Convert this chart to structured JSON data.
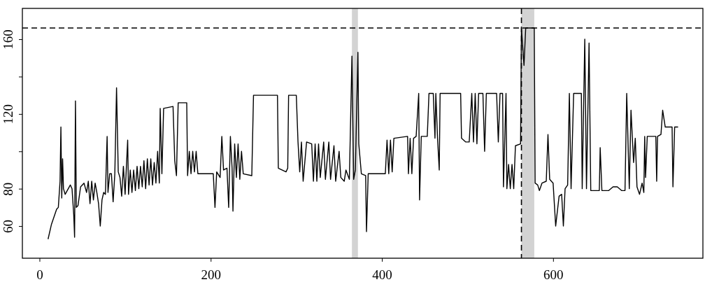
{
  "chart_data": {
    "type": "line",
    "xlim": [
      -20,
      775
    ],
    "ylim": [
      42.8,
      176.5
    ],
    "xticks": [
      0,
      200,
      400,
      600
    ],
    "yticks": [
      60,
      80,
      {
        "value": 100,
        "label": null
      },
      120,
      {
        "value": 140,
        "label": null
      },
      160
    ],
    "grid": false,
    "marker": "none",
    "line_style": "solid",
    "ref_lines": [
      {
        "axis": "y",
        "value": 166,
        "line_style": "dashed",
        "color": "#000000"
      },
      {
        "axis": "x",
        "value": 563,
        "line_style": "dashed",
        "color": "#000000"
      }
    ],
    "bands": [
      {
        "axis": "x",
        "from": 365,
        "to": 372,
        "color": "#d3d3d3"
      },
      {
        "axis": "x",
        "from": 563,
        "to": 578,
        "color": "#d3d3d3"
      }
    ],
    "series": [
      {
        "color": "#000000",
        "x": [
          10,
          14,
          17,
          20,
          22,
          24,
          25,
          26,
          27,
          28,
          30,
          36,
          38,
          40,
          41,
          42,
          43,
          45,
          48,
          52,
          55,
          57,
          59,
          61,
          63,
          65,
          67,
          69,
          71,
          73,
          75,
          77,
          79,
          80,
          82,
          84,
          86,
          88,
          90,
          92,
          94,
          96,
          98,
          100,
          103,
          104,
          106,
          108,
          110,
          112,
          114,
          116,
          118,
          120,
          122,
          124,
          126,
          128,
          130,
          132,
          134,
          136,
          138,
          140,
          141,
          143,
          145,
          156,
          158,
          160,
          162,
          172,
          173,
          175,
          177,
          179,
          181,
          183,
          185,
          203,
          205,
          207,
          211,
          213,
          215,
          219,
          221,
          223,
          225,
          226,
          228,
          230,
          232,
          234,
          236,
          238,
          248,
          250,
          278,
          279,
          288,
          290,
          291,
          300,
          302,
          304,
          306,
          308,
          312,
          318,
          320,
          322,
          324,
          326,
          328,
          332,
          334,
          338,
          340,
          344,
          346,
          350,
          352,
          356,
          358,
          362,
          365,
          367,
          369,
          372,
          373,
          376,
          381,
          382,
          384,
          404,
          406,
          408,
          410,
          412,
          414,
          430,
          431,
          433,
          435,
          437,
          440,
          443,
          444,
          446,
          453,
          455,
          460,
          462,
          463,
          465,
          467,
          468,
          479,
          492,
          493,
          498,
          502,
          505,
          507,
          509,
          511,
          513,
          518,
          520,
          522,
          534,
          536,
          538,
          541,
          542,
          545,
          546,
          548,
          550,
          552,
          554,
          556,
          562,
          563,
          566,
          568,
          578,
          579,
          582,
          584,
          587,
          592,
          594,
          596,
          600,
          603,
          607,
          610,
          612,
          614,
          617,
          619,
          621,
          624,
          633,
          634,
          637,
          639,
          642,
          644,
          654,
          655,
          657,
          665,
          670,
          675,
          680,
          684,
          686,
          689,
          691,
          694,
          696,
          698,
          701,
          704,
          706,
          707,
          708,
          710,
          720,
          721,
          722,
          726,
          728,
          731,
          739,
          740,
          742,
          746
        ],
        "values": [
          53,
          61,
          65,
          69,
          70,
          84,
          113,
          75,
          96,
          80,
          77,
          82,
          80,
          66,
          54,
          127,
          70,
          71,
          81,
          83,
          78,
          84,
          72,
          84,
          74,
          83,
          78,
          72,
          60,
          74,
          78,
          77,
          108,
          78,
          88,
          88,
          73,
          88,
          134,
          89,
          86,
          76,
          92,
          77,
          106,
          77,
          90,
          78,
          90,
          79,
          92,
          80,
          92,
          81,
          95,
          80,
          96,
          82,
          96,
          82,
          94,
          83,
          100,
          83,
          123,
          88,
          123,
          124,
          95,
          87,
          126,
          126,
          87,
          100,
          88,
          100,
          89,
          100,
          88,
          88,
          70,
          89,
          86,
          108,
          90,
          91,
          70,
          108,
          91,
          68,
          104,
          86,
          104,
          85,
          100,
          88,
          87,
          130,
          130,
          91,
          89,
          91,
          130,
          130,
          105,
          89,
          105,
          84,
          105,
          104,
          84,
          104,
          84,
          104,
          86,
          105,
          85,
          105,
          85,
          103,
          84,
          100,
          86,
          84,
          90,
          85,
          151,
          85,
          90,
          153,
          104,
          88,
          87,
          57,
          88,
          88,
          106,
          88,
          106,
          89,
          107,
          108,
          88,
          107,
          88,
          107,
          108,
          131,
          74,
          108,
          108,
          131,
          131,
          107,
          131,
          107,
          90,
          131,
          131,
          131,
          107,
          105,
          105,
          131,
          105,
          131,
          104,
          131,
          131,
          100,
          131,
          131,
          105,
          131,
          131,
          81,
          131,
          80,
          93,
          80,
          93,
          80,
          103,
          104,
          166,
          146,
          166,
          166,
          83,
          82,
          79,
          83,
          84,
          109,
          85,
          83,
          60,
          76,
          77,
          60,
          80,
          82,
          131,
          80,
          131,
          131,
          80,
          160,
          80,
          158,
          79,
          79,
          102,
          79,
          79,
          81,
          81,
          79,
          79,
          131,
          80,
          122,
          94,
          107,
          81,
          77,
          83,
          78,
          108,
          86,
          108,
          108,
          84,
          108,
          109,
          122,
          113,
          113,
          81,
          113,
          113
        ]
      }
    ]
  }
}
